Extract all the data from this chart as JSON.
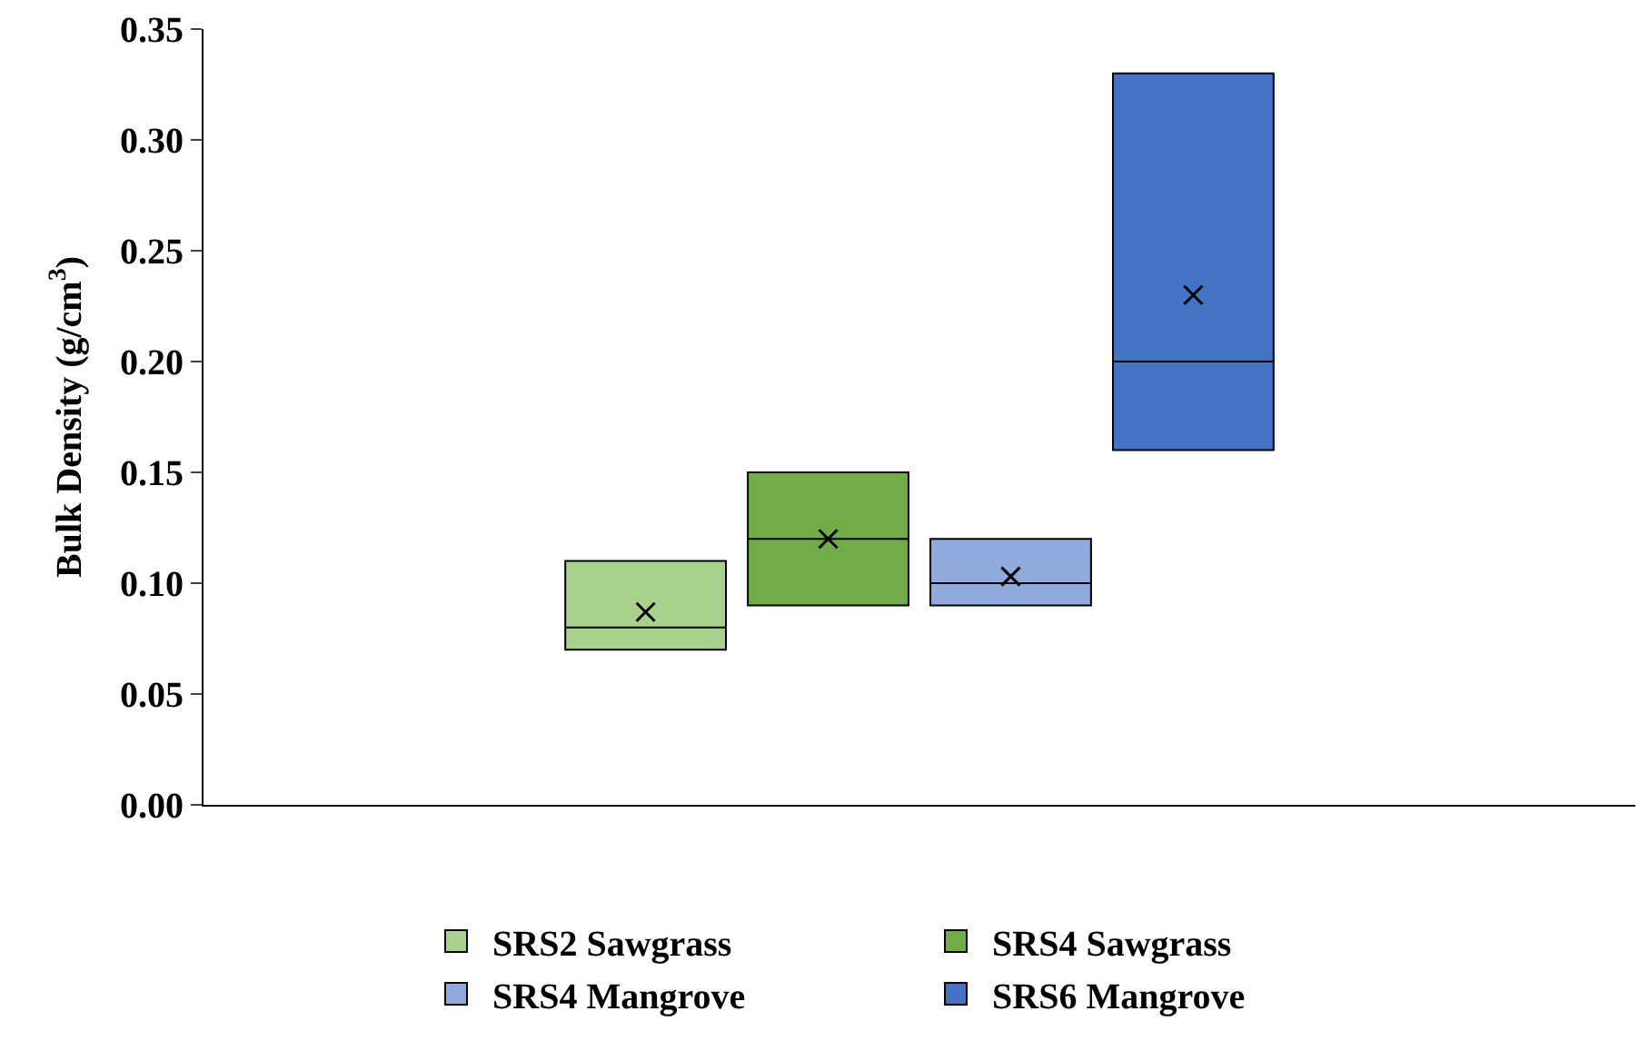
{
  "chart_data": {
    "type": "box",
    "ylabel": "Bulk Density (g/cm$^{3}$)",
    "categories": [
      null
    ],
    "series": [
      {
        "name": "SRS2 Sawgrass",
        "color": "#a9d18e",
        "boxes": [
          {
            "q1": 0.07,
            "median": 0.08,
            "q3": 0.11,
            "mean": 0.087
          }
        ]
      },
      {
        "name": "SRS4 Sawgrass",
        "color": "#70ad47",
        "boxes": [
          {
            "q1": 0.09,
            "median": 0.12,
            "q3": 0.15,
            "mean": 0.12
          }
        ]
      },
      {
        "name": "SRS4 Mangrove",
        "color": "#8faadc",
        "boxes": [
          {
            "q1": 0.09,
            "median": 0.1,
            "q3": 0.12,
            "mean": 0.103
          }
        ]
      },
      {
        "name": "SRS6 Mangrove",
        "color": "#4472c4",
        "boxes": [
          {
            "q1": 0.16,
            "median": 0.2,
            "q3": 0.33,
            "mean": 0.23
          }
        ]
      }
    ],
    "ylim": [
      0,
      0.35
    ],
    "yticks": [
      {
        "value": 0,
        "label": "0.00"
      },
      {
        "value": 0.05,
        "label": "0.05"
      },
      {
        "value": 0.1,
        "label": "0.10"
      },
      {
        "value": 0.15,
        "label": "0.15"
      },
      {
        "value": 0.2,
        "label": "0.20"
      },
      {
        "value": 0.25,
        "label": "0.25"
      },
      {
        "value": 0.3,
        "label": "0.30"
      },
      {
        "value": 0.35,
        "label": "0.35"
      }
    ],
    "legend": "bottom",
    "tick_labels": "y"
  }
}
